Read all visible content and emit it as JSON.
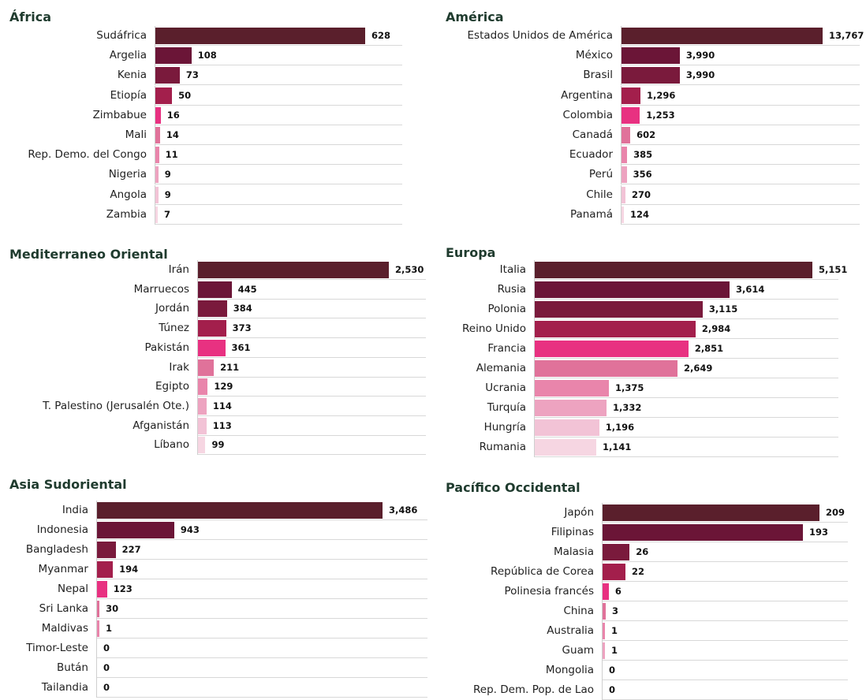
{
  "palette": [
    "#5a1f2c",
    "#6b1537",
    "#7a1a3c",
    "#a31f4c",
    "#e83181",
    "#e0729a",
    "#e985ab",
    "#eda3c0",
    "#f2c3d6",
    "#f6d6e2"
  ],
  "chart_data": [
    {
      "type": "bar",
      "orientation": "horizontal",
      "title": "África",
      "categories": [
        "Sudáfrica",
        "Argelia",
        "Kenia",
        "Etiopía",
        "Zimbabue",
        "Mali",
        "Rep. Demo. del Congo",
        "Nigeria",
        "Angola",
        "Zambia"
      ],
      "values": [
        628,
        108,
        73,
        50,
        16,
        14,
        11,
        9,
        9,
        7
      ],
      "labels": [
        "628",
        "108",
        "73",
        "50",
        "16",
        "14",
        "11",
        "9",
        "9",
        "7"
      ]
    },
    {
      "type": "bar",
      "orientation": "horizontal",
      "title": "América",
      "categories": [
        "Estados Unidos de América",
        "México",
        "Brasil",
        "Argentina",
        "Colombia",
        "Canadá",
        "Ecuador",
        "Perú",
        "Chile",
        "Panamá"
      ],
      "values": [
        13767,
        3990,
        3990,
        1296,
        1253,
        602,
        385,
        356,
        270,
        124
      ],
      "labels": [
        "13,767",
        "3,990",
        "3,990",
        "1,296",
        "1,253",
        "602",
        "385",
        "356",
        "270",
        "124"
      ]
    },
    {
      "type": "bar",
      "orientation": "horizontal",
      "title": "Mediterraneo Oriental",
      "categories": [
        "Irán",
        "Marruecos",
        "Jordán",
        "Túnez",
        "Pakistán",
        "Irak",
        "Egipto",
        "T. Palestino (Jerusalén Ote.)",
        "Afganistán",
        "Líbano"
      ],
      "values": [
        2530,
        445,
        384,
        373,
        361,
        211,
        129,
        114,
        113,
        99
      ],
      "labels": [
        "2,530",
        "445",
        "384",
        "373",
        "361",
        "211",
        "129",
        "114",
        "113",
        "99"
      ]
    },
    {
      "type": "bar",
      "orientation": "horizontal",
      "title": "Europa",
      "categories": [
        "Italia",
        "Rusia",
        "Polonia",
        "Reino Unido",
        "Francia",
        "Alemania",
        "Ucrania",
        "Turquía",
        "Hungría",
        "Rumania"
      ],
      "values": [
        5151,
        3614,
        3115,
        2984,
        2851,
        2649,
        1375,
        1332,
        1196,
        1141
      ],
      "labels": [
        "5,151",
        "3,614",
        "3,115",
        "2,984",
        "2,851",
        "2,649",
        "1,375",
        "1,332",
        "1,196",
        "1,141"
      ]
    },
    {
      "type": "bar",
      "orientation": "horizontal",
      "title": "Asia Sudoriental",
      "categories": [
        "India",
        "Indonesia",
        "Bangladesh",
        "Myanmar",
        "Nepal",
        "Sri Lanka",
        "Maldivas",
        "Timor-Leste",
        "Bután",
        "Tailandia"
      ],
      "values": [
        3486,
        943,
        227,
        194,
        123,
        30,
        1,
        0,
        0,
        0
      ],
      "labels": [
        "3,486",
        "943",
        "227",
        "194",
        "123",
        "30",
        "1",
        "0",
        "0",
        "0"
      ]
    },
    {
      "type": "bar",
      "orientation": "horizontal",
      "title": "Pacífico Occidental",
      "categories": [
        "Japón",
        "Filipinas",
        "Malasia",
        "República de Corea",
        "Polinesia francés",
        "China",
        "Australia",
        "Guam",
        "Mongolia",
        "Rep. Dem. Pop. de Lao"
      ],
      "values": [
        209,
        193,
        26,
        22,
        6,
        3,
        1,
        1,
        0,
        0
      ],
      "labels": [
        "209",
        "193",
        "26",
        "22",
        "6",
        "3",
        "1",
        "1",
        "0",
        "0"
      ]
    }
  ]
}
